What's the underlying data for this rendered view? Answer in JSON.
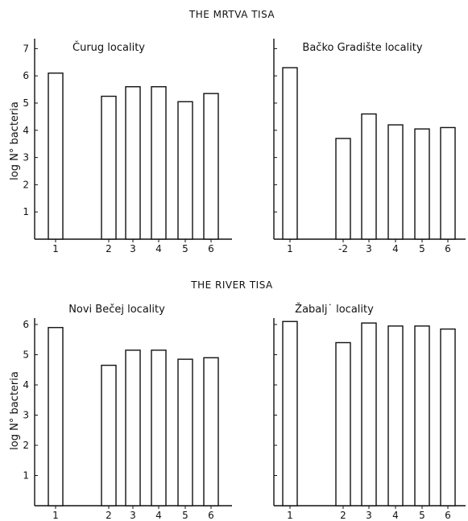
{
  "figure": {
    "section_titles": [
      "THE MRTVA TISA",
      "THE RIVER TISA"
    ]
  },
  "chart_data": [
    {
      "type": "bar",
      "title": "Čurug locality",
      "ylabel": "log N° bacteria",
      "xlabel": "",
      "categories": [
        "1",
        "2",
        "3",
        "4",
        "5",
        "6"
      ],
      "values": [
        6.1,
        5.25,
        5.6,
        5.6,
        5.05,
        5.35
      ],
      "ylim": [
        0,
        7
      ],
      "yticks": [
        "1",
        "2",
        "3",
        "4",
        "5",
        "6",
        "7"
      ],
      "grid": false
    },
    {
      "type": "bar",
      "title": "Bačko Gradište locality",
      "ylabel": "",
      "xlabel": "",
      "categories": [
        "1",
        "-2",
        "3",
        "4",
        "5",
        "6"
      ],
      "values": [
        6.3,
        3.7,
        4.6,
        4.2,
        4.05,
        4.1
      ],
      "ylim": [
        0,
        7
      ],
      "yticks": [],
      "grid": false
    },
    {
      "type": "bar",
      "title": "Novi Bečej locality",
      "ylabel": "log N° bacteria",
      "xlabel": "",
      "categories": [
        "1",
        "2",
        "3",
        "4",
        "5",
        "6"
      ],
      "values": [
        5.9,
        4.65,
        5.15,
        5.15,
        4.85,
        4.9
      ],
      "ylim": [
        0,
        7
      ],
      "yticks": [
        "1",
        "2",
        "3",
        "4",
        "5",
        "6"
      ],
      "grid": false
    },
    {
      "type": "bar",
      "title": "Žabalj˙ locality",
      "ylabel": "",
      "xlabel": "",
      "categories": [
        "1",
        "2",
        "3",
        "4",
        "5",
        "6"
      ],
      "values": [
        6.1,
        5.4,
        6.05,
        5.95,
        5.95,
        5.85
      ],
      "ylim": [
        0,
        7
      ],
      "yticks": [],
      "grid": false
    }
  ]
}
